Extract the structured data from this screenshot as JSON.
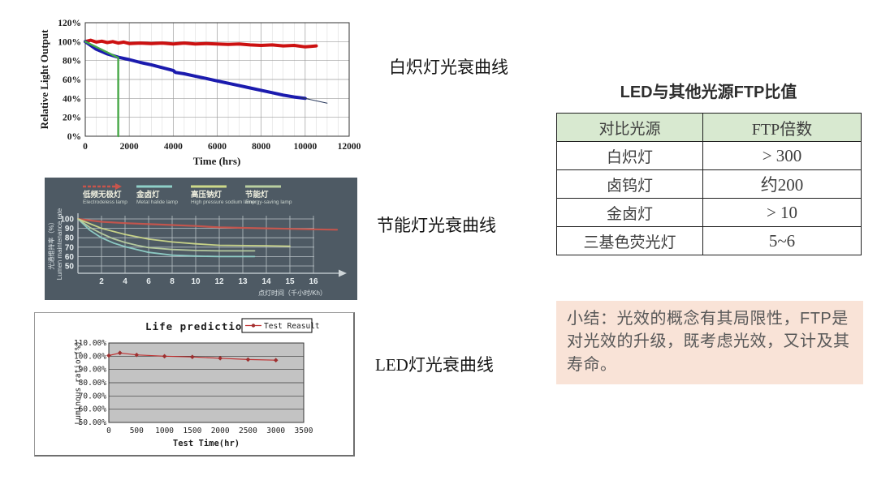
{
  "labels": {
    "incandescent": "白炽灯光衰曲线",
    "energy_saving": "节能灯光衰曲线",
    "led": "LED灯光衰曲线"
  },
  "table": {
    "title": "LED与其他光源FTP比值",
    "header": [
      "对比光源",
      "FTP倍数"
    ],
    "header_bg": "#d8e9d0",
    "rows": [
      [
        "白炽灯",
        "> 300"
      ],
      [
        "卤钨灯",
        "约200"
      ],
      [
        "金卤灯",
        "> 10"
      ],
      [
        "三基色荧光灯",
        "5~6"
      ]
    ]
  },
  "summary": {
    "bg": "#f9e3d7",
    "text": "小结：光效的概念有其局限性，FTP是对光效的升级，既考虑光效，又计及其寿命。"
  },
  "chart_data": [
    {
      "name": "incandescent-decay",
      "type": "line",
      "xlabel": "Time (hrs)",
      "ylabel": "Relative Light Output",
      "xlim": [
        0,
        12000
      ],
      "ylim": [
        0,
        120
      ],
      "xticks": [
        0,
        2000,
        4000,
        6000,
        8000,
        10000,
        12000
      ],
      "ytick_labels": [
        "0%",
        "20%",
        "40%",
        "60%",
        "80%",
        "100%",
        "120%"
      ],
      "ytick_values": [
        0,
        20,
        40,
        60,
        80,
        100,
        120
      ],
      "grid": true,
      "series": [
        {
          "name": "electrodeless-red",
          "color": "#cc1111",
          "width": 4,
          "x": [
            0,
            250,
            500,
            750,
            1000,
            1250,
            1500,
            1750,
            2000,
            2500,
            3000,
            3500,
            4000,
            4500,
            5000,
            5500,
            6000,
            6500,
            7000,
            7500,
            8000,
            8500,
            9000,
            9500,
            10000,
            10500
          ],
          "y": [
            100,
            101.5,
            99.5,
            100.5,
            99,
            100,
            98.5,
            99.5,
            98,
            98.5,
            98,
            98.5,
            97.5,
            98.5,
            97.5,
            98,
            97.5,
            97,
            97.5,
            96.5,
            96,
            96.5,
            95.5,
            96,
            94.5,
            95.5
          ]
        },
        {
          "name": "incandescent-blue",
          "color": "#1b1bae",
          "width": 4,
          "x": [
            0,
            500,
            1000,
            1500,
            2000,
            2500,
            3000,
            3500,
            4000,
            4100,
            4500,
            5000,
            5500,
            6000,
            6500,
            7000,
            7500,
            8000,
            8500,
            9000,
            9500,
            10000
          ],
          "y": [
            100,
            92,
            87,
            83.5,
            81,
            78,
            75.5,
            72.5,
            69.5,
            67.5,
            66,
            63.5,
            61,
            58.5,
            56,
            53.5,
            51,
            48.5,
            46,
            43.5,
            41.5,
            40
          ]
        },
        {
          "name": "trend-line",
          "color": "#26365a",
          "width": 1,
          "x": [
            9800,
            11000
          ],
          "y": [
            41,
            35
          ]
        },
        {
          "name": "green-marker",
          "color": "#47a847",
          "width": 2.4,
          "x": [
            0,
            1500,
            1500
          ],
          "y": [
            100,
            83,
            0
          ]
        }
      ]
    },
    {
      "name": "conventional-sources-decay",
      "type": "line",
      "bg": "#4e5a64",
      "ylabel_cn": "光通维持率（%）",
      "ylabel_en": "Lumen maintenance rate",
      "xlabel": "点灯时间（千小时/Kh）",
      "ytick_values": [
        100,
        90,
        80,
        70,
        60,
        50
      ],
      "xticks": [
        2,
        4,
        6,
        8,
        10,
        12,
        13,
        14,
        15,
        16
      ],
      "legend": [
        {
          "cn": "低频无极灯",
          "en": "Electrodeless lamp",
          "color": "#c8554c",
          "style": "arrow"
        },
        {
          "cn": "金卤灯",
          "en": "Metal halide lamp",
          "color": "#8fd0c8",
          "style": "line"
        },
        {
          "cn": "高压钠灯",
          "en": "High pressure sodium lamp",
          "color": "#cdd98a",
          "style": "line"
        },
        {
          "cn": "节能灯",
          "en": "Energy-saving lamp",
          "color": "#b9cfa0",
          "style": "line"
        }
      ],
      "series": [
        {
          "name": "electrodeless",
          "color": "#c8554c",
          "width": 2.2,
          "x": [
            0,
            2,
            4,
            6,
            8,
            10,
            12,
            13,
            14,
            15,
            16,
            17
          ],
          "y": [
            100,
            97,
            95.5,
            94.5,
            93.5,
            92.5,
            91,
            90.5,
            90,
            89.5,
            89,
            88.5
          ]
        },
        {
          "name": "metal-halide",
          "color": "#8fd0c8",
          "width": 1.8,
          "x": [
            0,
            1,
            2,
            3,
            4,
            5,
            6,
            8,
            10,
            12,
            13.5
          ],
          "y": [
            100,
            88,
            80,
            74.5,
            70.5,
            67.5,
            64.5,
            61.5,
            60.5,
            60,
            60
          ]
        },
        {
          "name": "hp-sodium",
          "color": "#cdd98a",
          "width": 1.8,
          "x": [
            0,
            2,
            4,
            6,
            8,
            10,
            12,
            14,
            15
          ],
          "y": [
            100,
            90,
            83.5,
            78.5,
            75.5,
            73.5,
            72,
            71.5,
            71
          ]
        },
        {
          "name": "energy-saving",
          "color": "#b9cfa0",
          "width": 1.8,
          "x": [
            0,
            1,
            2,
            3,
            4,
            5,
            6,
            8,
            10,
            12,
            13.5
          ],
          "y": [
            100,
            91,
            84.5,
            79,
            75,
            72,
            69.5,
            67.5,
            66.5,
            66,
            66
          ]
        }
      ]
    },
    {
      "name": "led-life-prediction",
      "type": "line",
      "title": "Life prediction",
      "legend_label": "Test Reasult",
      "xlabel": "Test Time(hr)",
      "ylabel": "Luminous ratio (%)",
      "plot_bg": "#c3c3c3",
      "xticks": [
        0,
        500,
        1000,
        1500,
        2000,
        2500,
        3000,
        3500
      ],
      "ytick_labels": [
        "110.00%",
        "100.00%",
        "90.00%",
        "80.00%",
        "70.00%",
        "60.00%",
        "50.00%"
      ],
      "ytick_values": [
        110,
        100,
        90,
        80,
        70,
        60,
        50
      ],
      "series": [
        {
          "name": "test-result",
          "color": "#c03030",
          "marker_color": "#9e2f2f",
          "width": 1.2,
          "x": [
            0,
            200,
            500,
            1000,
            1500,
            2000,
            2500,
            3000
          ],
          "y": [
            100.5,
            102.5,
            101,
            100,
            99.5,
            98.5,
            97.5,
            97
          ]
        }
      ]
    }
  ]
}
